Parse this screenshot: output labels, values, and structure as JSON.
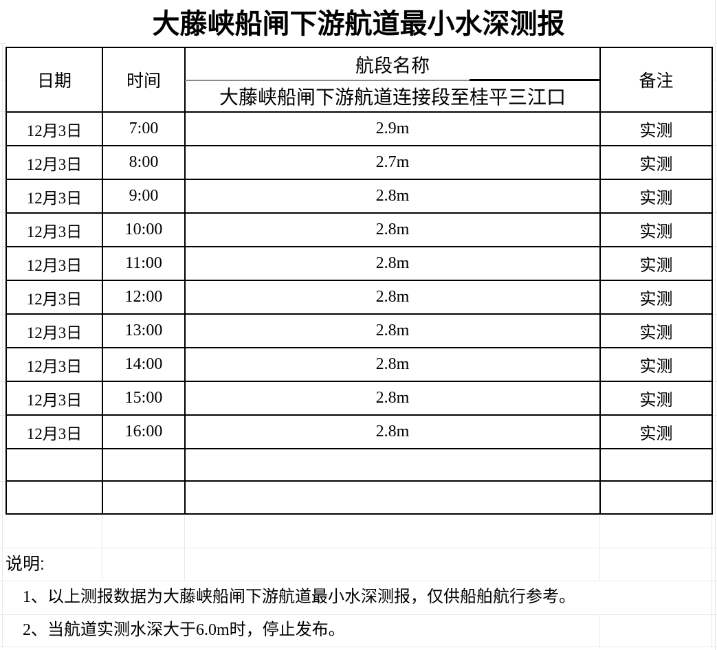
{
  "colors": {
    "background": "#ffffff",
    "text": "#000000",
    "table_border": "#000000",
    "header_divider_gray": "#8a8a8a",
    "faint_gridline": "#e8e8ec"
  },
  "title": "大藤峡船闸下游航道最小水深测报",
  "table": {
    "header": {
      "date": "日期",
      "time": "时间",
      "segment_group": "航段名称",
      "segment_name": "大藤峡船闸下游航道连接段至桂平三江口",
      "remark": "备注"
    },
    "rows": [
      {
        "date": "12月3日",
        "time": "7:00",
        "depth": "2.9m",
        "remark": "实测"
      },
      {
        "date": "12月3日",
        "time": "8:00",
        "depth": "2.7m",
        "remark": "实测"
      },
      {
        "date": "12月3日",
        "time": "9:00",
        "depth": "2.8m",
        "remark": "实测"
      },
      {
        "date": "12月3日",
        "time": "10:00",
        "depth": "2.8m",
        "remark": "实测"
      },
      {
        "date": "12月3日",
        "time": "11:00",
        "depth": "2.8m",
        "remark": "实测"
      },
      {
        "date": "12月3日",
        "time": "12:00",
        "depth": "2.8m",
        "remark": "实测"
      },
      {
        "date": "12月3日",
        "time": "13:00",
        "depth": "2.8m",
        "remark": "实测"
      },
      {
        "date": "12月3日",
        "time": "14:00",
        "depth": "2.8m",
        "remark": "实测"
      },
      {
        "date": "12月3日",
        "time": "15:00",
        "depth": "2.8m",
        "remark": "实测"
      },
      {
        "date": "12月3日",
        "time": "16:00",
        "depth": "2.8m",
        "remark": "实测"
      }
    ],
    "empty_row_count": 2
  },
  "notes": {
    "label": "说明:",
    "items": [
      "1、以上测报数据为大藤峡船闸下游航道最小水深测报，仅供船舶航行参考。",
      "2、当航道实测水深大于6.0m时，停止发布。"
    ]
  }
}
